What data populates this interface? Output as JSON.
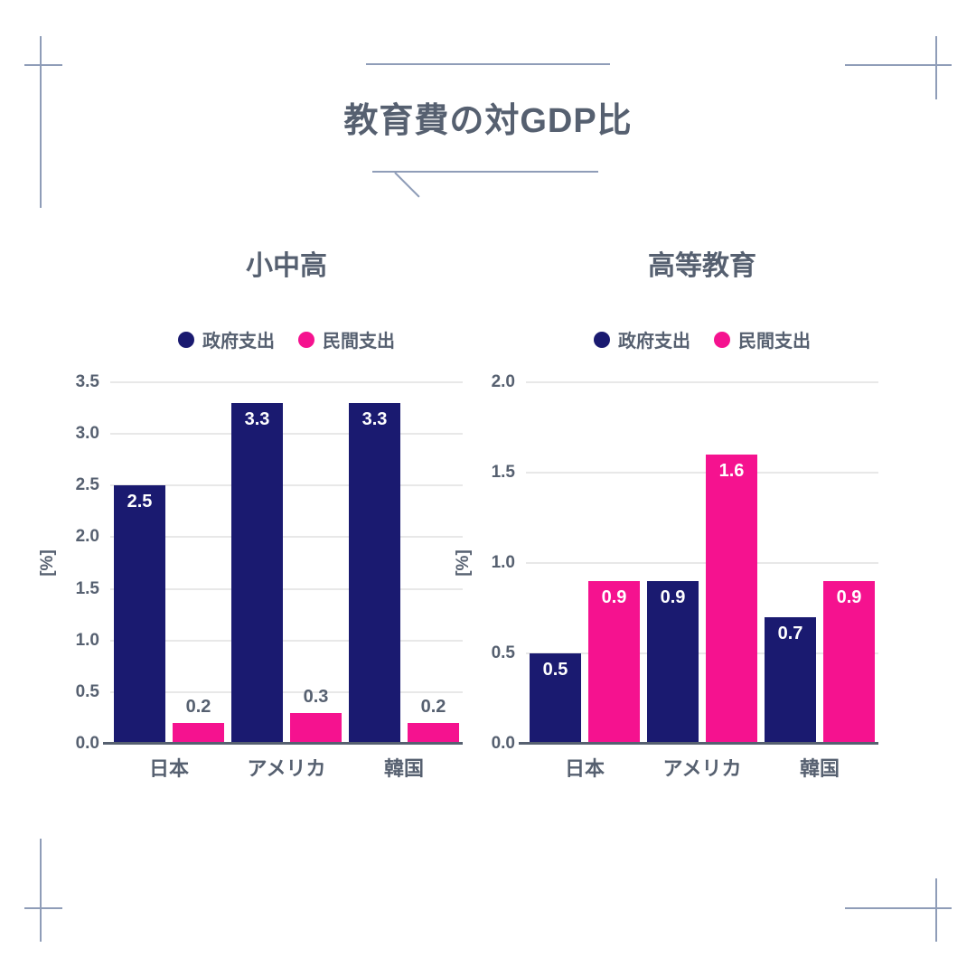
{
  "page": {
    "title": "教育費の対GDP比"
  },
  "colors": {
    "government": "#1a1a70",
    "private": "#f5128f",
    "text": "#566070",
    "grid": "#e8e8e8",
    "frame": "#8f9db8"
  },
  "chart_data": [
    {
      "type": "bar",
      "title": "小中高",
      "ylabel": "[%]",
      "ylim": [
        0,
        3.5
      ],
      "yticks": [
        "0.0",
        "0.5",
        "1.0",
        "1.5",
        "2.0",
        "2.5",
        "3.0",
        "3.5"
      ],
      "grid": true,
      "legend_position": "top",
      "categories": [
        "日本",
        "アメリカ",
        "韓国"
      ],
      "series": [
        {
          "name": "政府支出",
          "color_key": "government",
          "values": [
            2.5,
            3.3,
            3.3
          ]
        },
        {
          "name": "民間支出",
          "color_key": "private",
          "values": [
            0.2,
            0.3,
            0.2
          ]
        }
      ]
    },
    {
      "type": "bar",
      "title": "高等教育",
      "ylabel": "[%]",
      "ylim": [
        0,
        2.0
      ],
      "yticks": [
        "0.0",
        "0.5",
        "1.0",
        "1.5",
        "2.0"
      ],
      "grid": true,
      "legend_position": "top",
      "categories": [
        "日本",
        "アメリカ",
        "韓国"
      ],
      "series": [
        {
          "name": "政府支出",
          "color_key": "government",
          "values": [
            0.5,
            0.9,
            0.7
          ]
        },
        {
          "name": "民間支出",
          "color_key": "private",
          "values": [
            0.9,
            1.6,
            0.9
          ]
        }
      ]
    }
  ]
}
